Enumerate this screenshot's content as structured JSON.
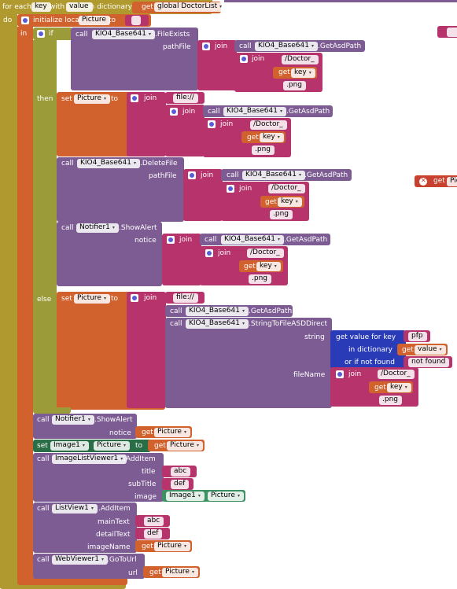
{
  "foreach": {
    "for_each": "for each",
    "key_var": "key",
    "with": "with",
    "value_var": "value",
    "in_dictionary": "in dictionary",
    "get": "get",
    "global_list": "global DoctorList",
    "do": "do"
  },
  "init": {
    "label": "initialize local",
    "var": "Picture",
    "to": "to",
    "in": "in"
  },
  "if_block": {
    "if": "if",
    "then": "then",
    "else": "else"
  },
  "common": {
    "call": "call",
    "set": "set",
    "get": "get",
    "join": "join",
    "to": "to",
    "component": "KIO4_Base641",
    "get_asd_path": ".GetAsdPath",
    "file_exists": ".FileExists",
    "delete_file": ".DeleteFile",
    "string_to_file": ".StringToFileASDDirect",
    "path_file": "pathFile",
    "file_prefix": "file://",
    "doctor_path": "/Doctor_",
    "png": ".png",
    "key": "key",
    "picture": "Picture",
    "notice": "notice",
    "string": "string",
    "file_name": "fileName"
  },
  "notifier": {
    "component": "Notifier1",
    "show_alert": ".ShowAlert"
  },
  "dict_lookup": {
    "get_value_for_key": "get value for key",
    "pfp": "pfp",
    "in_dictionary": "in dictionary",
    "value": "value",
    "if_not_found": "or if not found",
    "not_found": "not found"
  },
  "image": {
    "component": "Image1",
    "property": "Picture"
  },
  "image_list": {
    "component": "ImageListViewer1",
    "add_item": ".AddItem",
    "title": "title",
    "subtitle": "subTitle",
    "image": "image",
    "abc": "abc",
    "def": "def"
  },
  "list_view": {
    "component": "ListView1",
    "add_item": ".AddItem",
    "main_text": "mainText",
    "detail_text": "detailText",
    "image_name": "imageName",
    "abc": "abc",
    "def": "def"
  },
  "web_viewer": {
    "component": "WebViewer1",
    "go_to_url": ".GoToUrl",
    "url": "url"
  },
  "stray": {
    "get": "get",
    "pic_partial": "Pic"
  }
}
